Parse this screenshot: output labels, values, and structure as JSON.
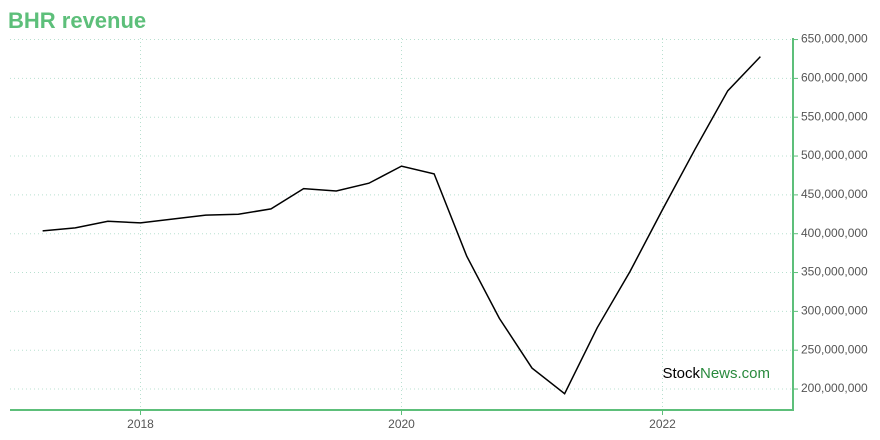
{
  "chart_data": {
    "type": "line",
    "title": "BHR revenue",
    "watermark": [
      "Stock",
      "News.com"
    ],
    "x": [
      2017.25,
      2017.5,
      2017.75,
      2018,
      2018.25,
      2018.5,
      2018.75,
      2019,
      2019.25,
      2019.5,
      2019.75,
      2020,
      2020.25,
      2020.5,
      2020.75,
      2021,
      2021.25,
      2021.5,
      2021.75,
      2022,
      2022.25,
      2022.5,
      2022.75
    ],
    "series": [
      {
        "color": "#000000",
        "values": [
          403600000,
          407500000,
          416000000,
          414000000,
          419000000,
          424000000,
          425000000,
          432000000,
          458000000,
          455000000,
          465000000,
          487000000,
          477000000,
          371000000,
          291000000,
          227000000,
          194000000,
          279000000,
          351000000,
          431000000,
          509000000,
          584000000,
          628000000
        ]
      }
    ],
    "xlim": [
      2017,
      2023
    ],
    "xticks": [
      2018,
      2020,
      2022
    ],
    "ylim": [
      173000000,
      652000000
    ],
    "yticks": [
      {
        "value": 200000000,
        "label": "200,000,000"
      },
      {
        "value": 250000000,
        "label": "250,000,000"
      },
      {
        "value": 300000000,
        "label": "300,000,000"
      },
      {
        "value": 350000000,
        "label": "350,000,000"
      },
      {
        "value": 400000000,
        "label": "400,000,000"
      },
      {
        "value": 450000000,
        "label": "450,000,000"
      },
      {
        "value": 500000000,
        "label": "500,000,000"
      },
      {
        "value": 550000000,
        "label": "550,000,000"
      },
      {
        "value": 600000000,
        "label": "600,000,000"
      },
      {
        "value": 650000000,
        "label": "650,000,000"
      }
    ],
    "grid": true,
    "axis_color": "#5dbf7a"
  }
}
